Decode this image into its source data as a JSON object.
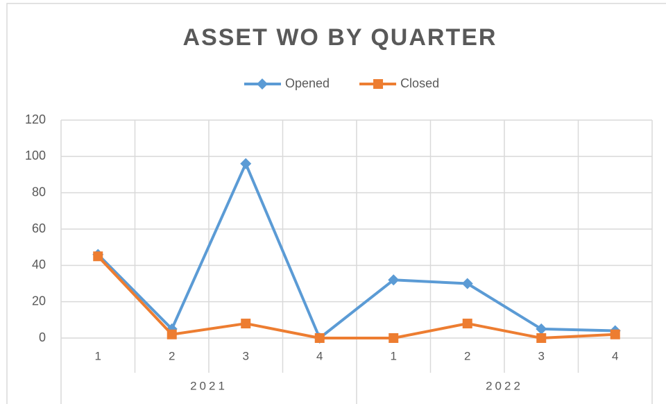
{
  "chart_data": {
    "type": "line",
    "title": "ASSET WO BY QUARTER",
    "categories": [
      "1",
      "2",
      "3",
      "4",
      "1",
      "2",
      "3",
      "4"
    ],
    "category_groups": [
      "2021",
      "2022"
    ],
    "series": [
      {
        "name": "Opened",
        "color": "#5b9bd5",
        "marker": "diamond",
        "values": [
          46,
          5,
          96,
          0,
          32,
          30,
          5,
          4
        ]
      },
      {
        "name": "Closed",
        "color": "#ed7d31",
        "marker": "square",
        "values": [
          45,
          2,
          8,
          0,
          0,
          8,
          0,
          2
        ]
      }
    ],
    "ylim": [
      0,
      120
    ],
    "yticks": [
      0,
      20,
      40,
      60,
      80,
      100,
      120
    ],
    "grid": true,
    "legend": "top"
  }
}
